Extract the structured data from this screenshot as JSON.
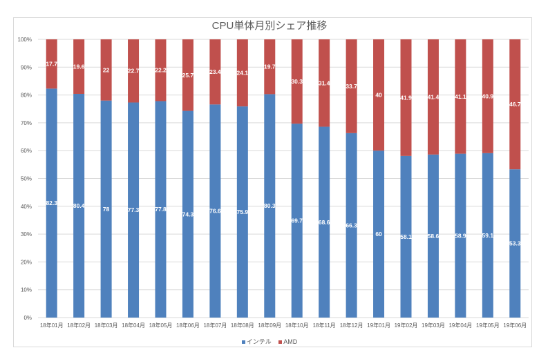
{
  "chart_data": {
    "type": "bar",
    "stacked": "percent",
    "title": "CPU単体月別シェア推移",
    "categories": [
      "18年01月",
      "18年02月",
      "18年03月",
      "18年04月",
      "18年05月",
      "18年06月",
      "18年07月",
      "18年08月",
      "18年09月",
      "18年10月",
      "18年11月",
      "18年12月",
      "19年01月",
      "19年02月",
      "19年03月",
      "19年04月",
      "19年05月",
      "19年06月"
    ],
    "series": [
      {
        "name": "インテル",
        "color": "#4f81bd",
        "values": [
          82.3,
          80.4,
          78,
          77.3,
          77.8,
          74.3,
          76.6,
          75.9,
          80.3,
          69.7,
          68.6,
          66.3,
          60,
          58.1,
          58.6,
          58.9,
          59.1,
          53.3
        ]
      },
      {
        "name": "AMD",
        "color": "#c0504d",
        "values": [
          17.7,
          19.6,
          22,
          22.7,
          22.2,
          25.7,
          23.4,
          24.1,
          19.7,
          30.3,
          31.4,
          33.7,
          40,
          41.9,
          41.4,
          41.1,
          40.9,
          46.7
        ]
      }
    ],
    "yticks": [
      "0%",
      "10%",
      "20%",
      "30%",
      "40%",
      "50%",
      "60%",
      "70%",
      "80%",
      "90%",
      "100%"
    ],
    "ylim": [
      0,
      100
    ],
    "xlabel": "",
    "ylabel": "",
    "grid": true,
    "legend": "bottom"
  }
}
